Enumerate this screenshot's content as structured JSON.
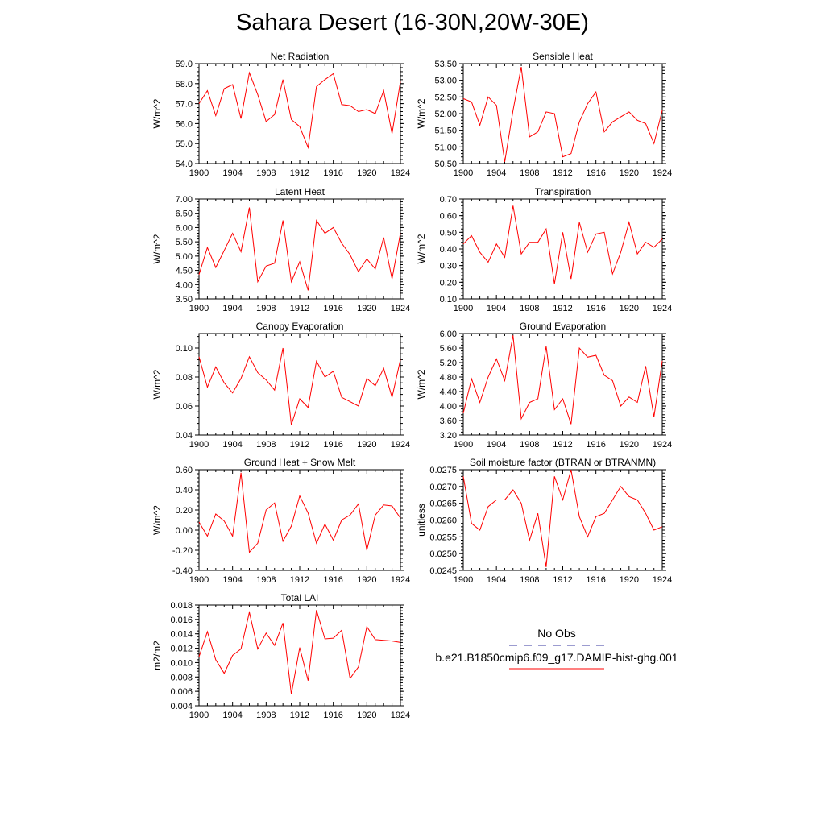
{
  "title": "Sahara Desert (16-30N,20W-30E)",
  "legend": {
    "items": [
      {
        "label": "No Obs",
        "color": "#3a3aa0",
        "style": "dashed"
      },
      {
        "label": "b.e21.B1850cmip6.f09_g17.DAMIP-hist-ghg.001",
        "color": "#ff0000",
        "style": "solid"
      }
    ]
  },
  "series_color": "#ff0000",
  "chart_data": [
    {
      "type": "line",
      "title": "Net Radiation",
      "ylabel": "W/m^2",
      "x": [
        1900,
        1901,
        1902,
        1903,
        1904,
        1905,
        1906,
        1907,
        1908,
        1909,
        1910,
        1911,
        1912,
        1913,
        1914,
        1915,
        1916,
        1917,
        1918,
        1919,
        1920,
        1921,
        1922,
        1923,
        1924
      ],
      "values": [
        57.0,
        57.65,
        56.4,
        57.75,
        57.95,
        56.25,
        58.55,
        57.45,
        56.1,
        56.45,
        58.2,
        56.2,
        55.85,
        54.8,
        57.85,
        58.2,
        58.5,
        56.95,
        56.9,
        56.6,
        56.7,
        56.5,
        57.65,
        55.5,
        58.1
      ],
      "xlim": [
        1900,
        1924
      ],
      "ylim": [
        54.0,
        59.0
      ],
      "xticks": [
        "1900",
        "1904",
        "1908",
        "1912",
        "1916",
        "1920",
        "1924"
      ],
      "yticks": [
        "54.0",
        "55.0",
        "56.0",
        "57.0",
        "58.0",
        "59.0"
      ]
    },
    {
      "type": "line",
      "title": "Sensible Heat",
      "ylabel": "W/m^2",
      "x": [
        1900,
        1901,
        1902,
        1903,
        1904,
        1905,
        1906,
        1907,
        1908,
        1909,
        1910,
        1911,
        1912,
        1913,
        1914,
        1915,
        1916,
        1917,
        1918,
        1919,
        1920,
        1921,
        1922,
        1923,
        1924
      ],
      "values": [
        52.45,
        52.35,
        51.65,
        52.5,
        52.25,
        50.55,
        52.1,
        53.4,
        51.3,
        51.45,
        52.05,
        52.0,
        50.7,
        50.8,
        51.75,
        52.3,
        52.65,
        51.45,
        51.75,
        51.9,
        52.05,
        51.8,
        51.7,
        51.1,
        52.1
      ],
      "xlim": [
        1900,
        1924
      ],
      "ylim": [
        50.5,
        53.5
      ],
      "xticks": [
        "1900",
        "1904",
        "1908",
        "1912",
        "1916",
        "1920",
        "1924"
      ],
      "yticks": [
        "50.50",
        "51.00",
        "51.50",
        "52.00",
        "52.50",
        "53.00",
        "53.50"
      ]
    },
    {
      "type": "line",
      "title": "Latent Heat",
      "ylabel": "W/m^2",
      "x": [
        1900,
        1901,
        1902,
        1903,
        1904,
        1905,
        1906,
        1907,
        1908,
        1909,
        1910,
        1911,
        1912,
        1913,
        1914,
        1915,
        1916,
        1917,
        1918,
        1919,
        1920,
        1921,
        1922,
        1923,
        1924
      ],
      "values": [
        4.35,
        5.3,
        4.6,
        5.2,
        5.8,
        5.15,
        6.7,
        4.1,
        4.65,
        4.75,
        6.25,
        4.1,
        4.8,
        3.8,
        6.25,
        5.8,
        6.0,
        5.45,
        5.05,
        4.45,
        4.9,
        4.55,
        5.65,
        4.2,
        5.8
      ],
      "xlim": [
        1900,
        1924
      ],
      "ylim": [
        3.5,
        7.0
      ],
      "xticks": [
        "1900",
        "1904",
        "1908",
        "1912",
        "1916",
        "1920",
        "1924"
      ],
      "yticks": [
        "3.50",
        "4.00",
        "4.50",
        "5.00",
        "5.50",
        "6.00",
        "6.50",
        "7.00"
      ]
    },
    {
      "type": "line",
      "title": "Transpiration",
      "ylabel": "W/m^2",
      "x": [
        1900,
        1901,
        1902,
        1903,
        1904,
        1905,
        1906,
        1907,
        1908,
        1909,
        1910,
        1911,
        1912,
        1913,
        1914,
        1915,
        1916,
        1917,
        1918,
        1919,
        1920,
        1921,
        1922,
        1923,
        1924
      ],
      "values": [
        0.43,
        0.48,
        0.38,
        0.32,
        0.43,
        0.35,
        0.66,
        0.37,
        0.44,
        0.44,
        0.52,
        0.19,
        0.5,
        0.22,
        0.56,
        0.38,
        0.49,
        0.5,
        0.25,
        0.38,
        0.56,
        0.37,
        0.44,
        0.41,
        0.46
      ],
      "xlim": [
        1900,
        1924
      ],
      "ylim": [
        0.1,
        0.7
      ],
      "xticks": [
        "1900",
        "1904",
        "1908",
        "1912",
        "1916",
        "1920",
        "1924"
      ],
      "yticks": [
        "0.10",
        "0.20",
        "0.30",
        "0.40",
        "0.50",
        "0.60",
        "0.70"
      ]
    },
    {
      "type": "line",
      "title": "Canopy Evaporation",
      "ylabel": "W/m^2",
      "x": [
        1900,
        1901,
        1902,
        1903,
        1904,
        1905,
        1906,
        1907,
        1908,
        1909,
        1910,
        1911,
        1912,
        1913,
        1914,
        1915,
        1916,
        1917,
        1918,
        1919,
        1920,
        1921,
        1922,
        1923,
        1924
      ],
      "values": [
        0.094,
        0.073,
        0.087,
        0.076,
        0.069,
        0.079,
        0.094,
        0.083,
        0.078,
        0.071,
        0.1,
        0.047,
        0.065,
        0.059,
        0.091,
        0.08,
        0.084,
        0.066,
        0.063,
        0.06,
        0.079,
        0.074,
        0.086,
        0.066,
        0.092
      ],
      "xlim": [
        1900,
        1924
      ],
      "ylim": [
        0.04,
        0.11
      ],
      "xticks": [
        "1900",
        "1904",
        "1908",
        "1912",
        "1916",
        "1920",
        "1924"
      ],
      "yticks": [
        "0.04",
        "0.06",
        "0.08",
        "0.10"
      ]
    },
    {
      "type": "line",
      "title": "Ground Evaporation",
      "ylabel": "W/m^2",
      "x": [
        1900,
        1901,
        1902,
        1903,
        1904,
        1905,
        1906,
        1907,
        1908,
        1909,
        1910,
        1911,
        1912,
        1913,
        1914,
        1915,
        1916,
        1917,
        1918,
        1919,
        1920,
        1921,
        1922,
        1923,
        1924
      ],
      "values": [
        3.8,
        4.75,
        4.1,
        4.8,
        5.3,
        4.7,
        5.95,
        3.65,
        4.1,
        4.2,
        5.65,
        3.9,
        4.2,
        3.5,
        5.6,
        5.35,
        5.4,
        4.85,
        4.7,
        4.0,
        4.25,
        4.1,
        5.1,
        3.7,
        5.25
      ],
      "xlim": [
        1900,
        1924
      ],
      "ylim": [
        3.2,
        6.0
      ],
      "xticks": [
        "1900",
        "1904",
        "1908",
        "1912",
        "1916",
        "1920",
        "1924"
      ],
      "yticks": [
        "3.20",
        "3.60",
        "4.00",
        "4.40",
        "4.80",
        "5.20",
        "5.60",
        "6.00"
      ]
    },
    {
      "type": "line",
      "title": "Ground Heat + Snow Melt",
      "ylabel": "W/m^2",
      "x": [
        1900,
        1901,
        1902,
        1903,
        1904,
        1905,
        1906,
        1907,
        1908,
        1909,
        1910,
        1911,
        1912,
        1913,
        1914,
        1915,
        1916,
        1917,
        1918,
        1919,
        1920,
        1921,
        1922,
        1923,
        1924
      ],
      "values": [
        0.08,
        -0.06,
        0.16,
        0.09,
        -0.06,
        0.57,
        -0.22,
        -0.13,
        0.2,
        0.27,
        -0.11,
        0.04,
        0.34,
        0.17,
        -0.13,
        0.06,
        -0.1,
        0.1,
        0.15,
        0.26,
        -0.2,
        0.15,
        0.25,
        0.24,
        0.12
      ],
      "xlim": [
        1900,
        1924
      ],
      "ylim": [
        -0.4,
        0.6
      ],
      "xticks": [
        "1900",
        "1904",
        "1908",
        "1912",
        "1916",
        "1920",
        "1924"
      ],
      "yticks": [
        "-0.40",
        "-0.20",
        "0.00",
        "0.20",
        "0.40",
        "0.60"
      ]
    },
    {
      "type": "line",
      "title": "Soil moisture factor (BTRAN or BTRANMN)",
      "ylabel": "unitless",
      "x": [
        1900,
        1901,
        1902,
        1903,
        1904,
        1905,
        1906,
        1907,
        1908,
        1909,
        1910,
        1911,
        1912,
        1913,
        1914,
        1915,
        1916,
        1917,
        1918,
        1919,
        1920,
        1921,
        1922,
        1923,
        1924
      ],
      "values": [
        0.0273,
        0.0259,
        0.0257,
        0.0264,
        0.0266,
        0.0266,
        0.0269,
        0.0265,
        0.0254,
        0.0262,
        0.0246,
        0.0273,
        0.0266,
        0.0275,
        0.0261,
        0.0255,
        0.0261,
        0.0262,
        0.0266,
        0.027,
        0.0267,
        0.0266,
        0.0262,
        0.0257,
        0.0258
      ],
      "xlim": [
        1900,
        1924
      ],
      "ylim": [
        0.0245,
        0.0275
      ],
      "xticks": [
        "1900",
        "1904",
        "1908",
        "1912",
        "1916",
        "1920",
        "1924"
      ],
      "yticks": [
        "0.0245",
        "0.0250",
        "0.0255",
        "0.0260",
        "0.0265",
        "0.0270",
        "0.0275"
      ]
    },
    {
      "type": "line",
      "title": "Total LAI",
      "ylabel": "m2/m2",
      "x": [
        1900,
        1901,
        1902,
        1903,
        1904,
        1905,
        1906,
        1907,
        1908,
        1909,
        1910,
        1911,
        1912,
        1913,
        1914,
        1915,
        1916,
        1917,
        1918,
        1919,
        1920,
        1921,
        1922,
        1923,
        1924
      ],
      "values": [
        0.0108,
        0.0143,
        0.0104,
        0.0085,
        0.011,
        0.0119,
        0.017,
        0.0119,
        0.0141,
        0.0124,
        0.0155,
        0.0056,
        0.0121,
        0.0075,
        0.0173,
        0.0133,
        0.0134,
        0.0145,
        0.0078,
        0.0094,
        0.015,
        0.0132,
        0.0131,
        0.013,
        0.0128
      ],
      "xlim": [
        1900,
        1924
      ],
      "ylim": [
        0.004,
        0.018
      ],
      "xticks": [
        "1900",
        "1904",
        "1908",
        "1912",
        "1916",
        "1920",
        "1924"
      ],
      "yticks": [
        "0.004",
        "0.006",
        "0.008",
        "0.010",
        "0.012",
        "0.014",
        "0.016",
        "0.018"
      ]
    }
  ]
}
